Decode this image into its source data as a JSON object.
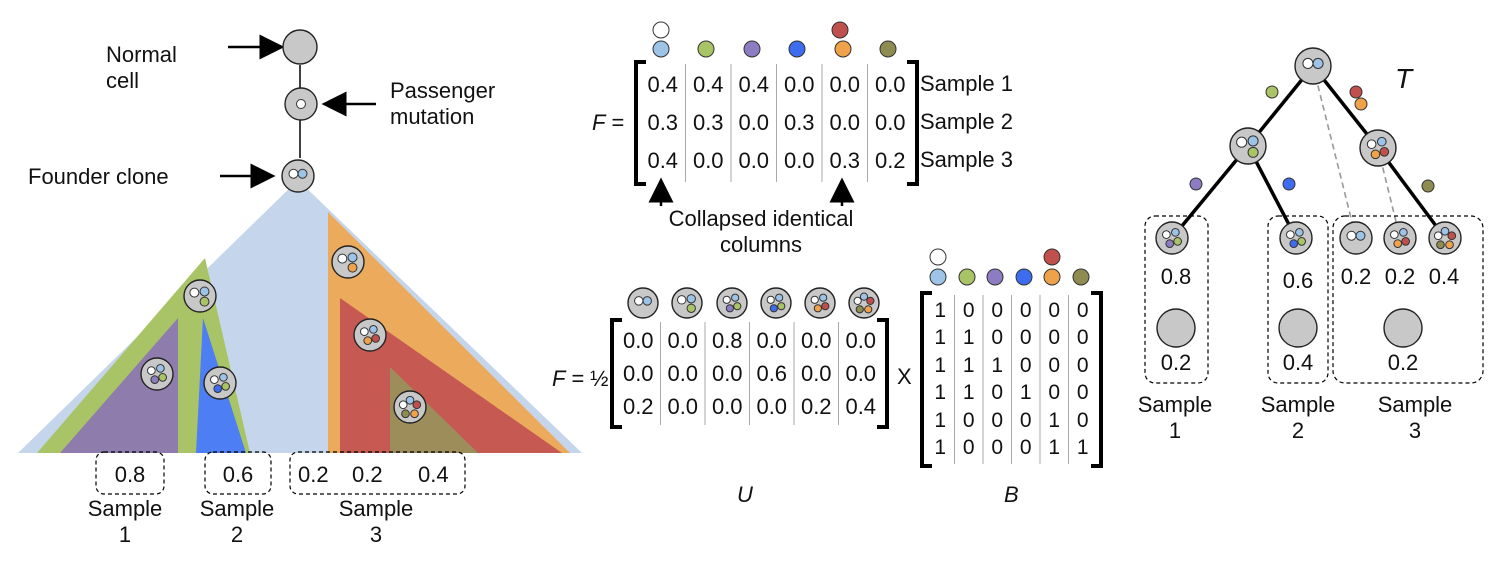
{
  "colors": {
    "cell_gray": "#c8c8c8",
    "mut_white": "#ffffff",
    "mut_lightblue": "#9dc3e6",
    "mut_green": "#a9c467",
    "mut_purple": "#8e7cc3",
    "mut_blue": "#3d6dee",
    "mut_red": "#c0504d",
    "mut_orange": "#f0a24a",
    "mut_olive": "#8f8c51",
    "region_founder": "#c5d6ec",
    "region_green": "#a9c467",
    "region_purple": "#8e7cad",
    "region_blue": "#4d7ef3",
    "region_orange": "#ecaa5c",
    "region_red": "#c65a52",
    "region_olive": "#9d8d5a"
  },
  "left": {
    "normal_cell": [
      "Normal",
      "cell"
    ],
    "passenger_mutation": [
      "Passenger",
      "mutation"
    ],
    "founder_clone": "Founder clone",
    "box1": "0.8",
    "box2": "0.6",
    "box3": [
      "0.2",
      "0.2",
      "0.4"
    ],
    "samples": [
      {
        "word": "Sample",
        "num": "1"
      },
      {
        "word": "Sample",
        "num": "2"
      },
      {
        "word": "Sample",
        "num": "3"
      }
    ]
  },
  "middle": {
    "f_label": "F =",
    "f_rows": [
      [
        "0.4",
        "0.4",
        "0.4",
        "0.0",
        "0.0",
        "0.0"
      ],
      [
        "0.3",
        "0.3",
        "0.0",
        "0.3",
        "0.0",
        "0.0"
      ],
      [
        "0.4",
        "0.0",
        "0.0",
        "0.0",
        "0.3",
        "0.2"
      ]
    ],
    "row_labels": [
      "Sample 1",
      "Sample 2",
      "Sample 3"
    ],
    "collapsed_note": [
      "Collapsed identical",
      "columns"
    ],
    "f2_label": "F =",
    "half": "½",
    "u_rows": [
      [
        "0.0",
        "0.0",
        "0.8",
        "0.0",
        "0.0",
        "0.0"
      ],
      [
        "0.0",
        "0.0",
        "0.0",
        "0.6",
        "0.0",
        "0.0"
      ],
      [
        "0.2",
        "0.0",
        "0.0",
        "0.0",
        "0.2",
        "0.4"
      ]
    ],
    "times": "X",
    "b_rows": [
      [
        "1",
        "0",
        "0",
        "0",
        "0",
        "0"
      ],
      [
        "1",
        "1",
        "0",
        "0",
        "0",
        "0"
      ],
      [
        "1",
        "1",
        "1",
        "0",
        "0",
        "0"
      ],
      [
        "1",
        "1",
        "0",
        "1",
        "0",
        "0"
      ],
      [
        "1",
        "0",
        "0",
        "0",
        "1",
        "0"
      ],
      [
        "1",
        "0",
        "0",
        "0",
        "1",
        "1"
      ]
    ],
    "u_label": "U",
    "b_label": "B"
  },
  "right": {
    "t_label": "T",
    "leaf_values": [
      "0.8",
      "0.6",
      "0.2",
      "0.2",
      "0.4"
    ],
    "normal_values": [
      "0.2",
      "0.4",
      "0.2"
    ],
    "samples": [
      {
        "word": "Sample",
        "num": "1"
      },
      {
        "word": "Sample",
        "num": "2"
      },
      {
        "word": "Sample",
        "num": "3"
      }
    ]
  }
}
